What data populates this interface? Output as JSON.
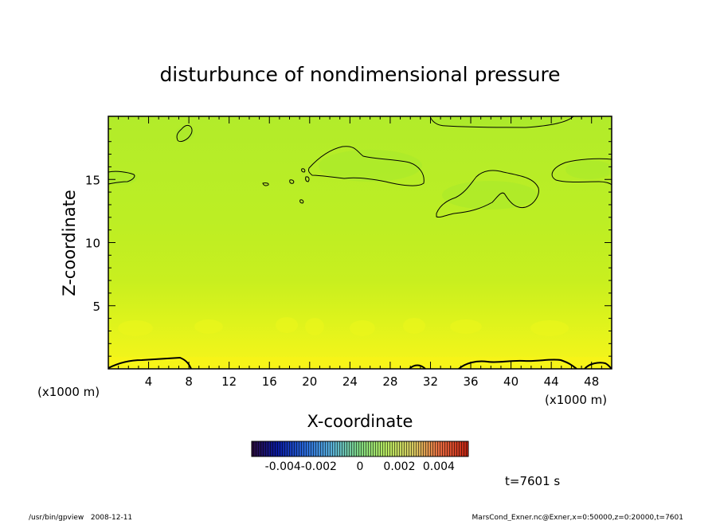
{
  "chart_data": {
    "type": "heatmap",
    "title": "disturbunce of nondimensional pressure",
    "xlabel": "X-coordinate",
    "ylabel": "Z-coordinate",
    "x_unit": "(x1000 m)",
    "x_unit_left": "(x1000 m)",
    "xlim": [
      0,
      50
    ],
    "ylim": [
      0,
      20
    ],
    "x_ticks": [
      "4",
      "8",
      "12",
      "16",
      "20",
      "24",
      "28",
      "32",
      "36",
      "40",
      "44",
      "48"
    ],
    "y_ticks": [
      "5",
      "10",
      "15"
    ],
    "colorbar": {
      "range": [
        -0.0055,
        0.0055
      ],
      "tick_labels": [
        "-0.004-0.002",
        "0",
        "0.002",
        "0.004"
      ]
    },
    "field_summary": [
      {
        "z": [
          0,
          1
        ],
        "value": 0.0012
      },
      {
        "z": [
          1,
          4
        ],
        "value": 0.0009
      },
      {
        "z": [
          4,
          10
        ],
        "value": 0.0006
      },
      {
        "z": [
          10,
          20
        ],
        "value": 0.0003
      }
    ],
    "annotation": "t=7601 s"
  },
  "footer": {
    "left": "/usr/bin/gpview   2008-12-11",
    "right": "MarsCond_Exner.nc@Exner,x=0:50000,z=0:20000,t=7601"
  },
  "colors": {
    "low_band": "#f1f21a",
    "mid_band": "#cbf01c",
    "upper_band": "#b4ed26",
    "contour": "#000000"
  }
}
